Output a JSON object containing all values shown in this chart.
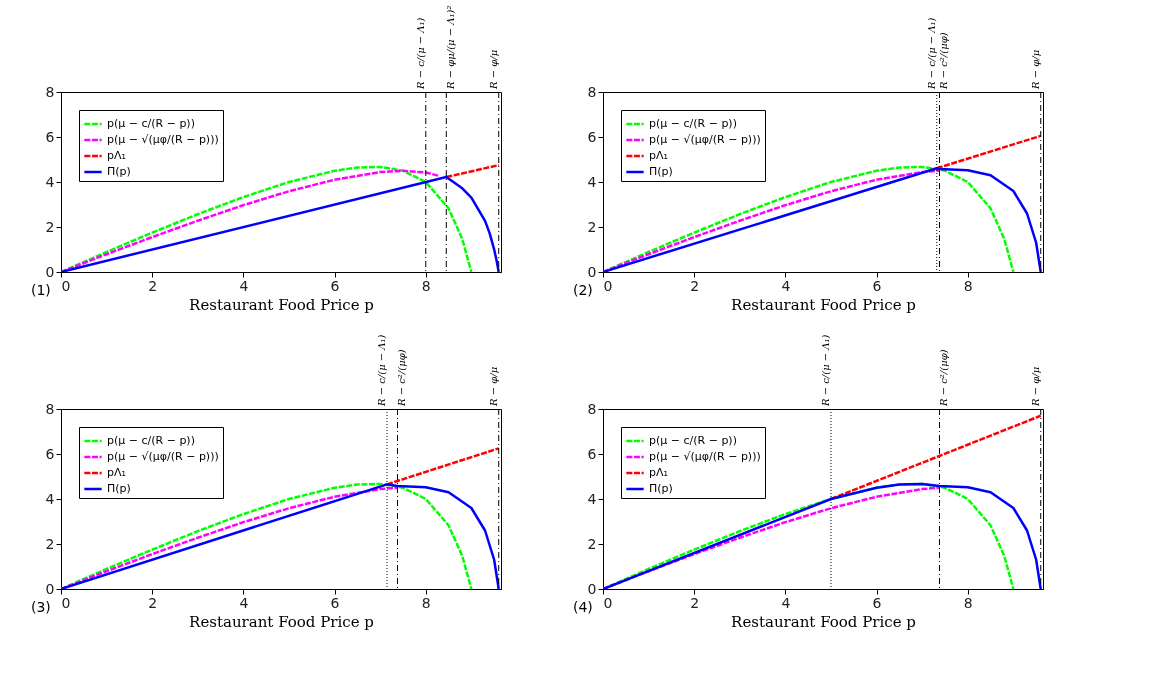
{
  "chart_data": [
    {
      "type": "line",
      "xlabel": "Restaurant Food Price p",
      "xlim": [
        0,
        9.65
      ],
      "ylim": [
        0,
        8
      ],
      "xticks": [
        0,
        2,
        4,
        6,
        8
      ],
      "yticks": [
        0,
        2,
        4,
        6,
        8
      ],
      "grid": false,
      "legend": "top left",
      "annotations": [
        "(1)"
      ],
      "series": [
        {
          "name": "p(μ − c/(R − p))",
          "color": "#00ff00",
          "line_style": "dashed",
          "x": [
            0,
            1,
            2,
            3,
            4,
            5,
            6,
            6.5,
            7,
            7.5,
            8,
            8.5,
            8.8,
            9
          ],
          "values": [
            0,
            0.89,
            1.75,
            2.57,
            3.33,
            4,
            4.5,
            4.64,
            4.67,
            4.5,
            4,
            2.83,
            1.47,
            0
          ]
        },
        {
          "name": "p(μ − √(μφ/(R − p)))",
          "color": "#ff00ff",
          "line_style": "dashed",
          "x": [
            0,
            1,
            2,
            3,
            4,
            5,
            6,
            7,
            7.5,
            8,
            8.3
          ],
          "values": [
            0,
            0.79,
            1.55,
            2.28,
            2.97,
            3.59,
            4.1,
            4.44,
            4.5,
            4.42,
            4.27
          ]
        },
        {
          "name": "pΛ₁",
          "color": "#ff0000",
          "line_style": "dashed",
          "x": [
            8.45,
            9.6
          ],
          "values": [
            4.22,
            4.75
          ]
        },
        {
          "name": "Π(p)",
          "color": "#0000ff",
          "line_style": "solid",
          "x": [
            0,
            8.45,
            8.8,
            9,
            9.3,
            9.4,
            9.5,
            9.55,
            9.6
          ],
          "values": [
            0,
            4.22,
            3.72,
            3.31,
            2.27,
            1.73,
            1.0,
            0.54,
            0
          ]
        }
      ],
      "ref_lines": [
        {
          "axis": "x",
          "value": 8,
          "label": "R − c/(μ − Λ₁)",
          "line_style": "dashdot"
        },
        {
          "axis": "x",
          "value": 8.45,
          "label": "R − φμ/(μ − Λ₁)²",
          "line_style": "dashdot"
        },
        {
          "axis": "x",
          "value": 9.6,
          "label": "R − φ/μ",
          "line_style": "dashdot"
        }
      ]
    },
    {
      "type": "line",
      "xlabel": "Restaurant Food Price p",
      "xlim": [
        0,
        9.65
      ],
      "ylim": [
        0,
        8
      ],
      "xticks": [
        0,
        2,
        4,
        6,
        8
      ],
      "yticks": [
        0,
        2,
        4,
        6,
        8
      ],
      "grid": false,
      "legend": "top left",
      "annotations": [
        "(2)"
      ],
      "series": [
        {
          "name": "p(μ − c/(R − p))",
          "color": "#00ff00",
          "line_style": "dashed",
          "x": [
            0,
            1,
            2,
            3,
            4,
            5,
            6,
            6.5,
            7,
            7.5,
            8,
            8.5,
            8.8,
            9
          ],
          "values": [
            0,
            0.89,
            1.75,
            2.57,
            3.33,
            4,
            4.5,
            4.64,
            4.67,
            4.5,
            4,
            2.83,
            1.47,
            0
          ]
        },
        {
          "name": "p(μ − √(μφ/(R − p)))",
          "color": "#ff00ff",
          "line_style": "dashed",
          "x": [
            0,
            1,
            2,
            3,
            4,
            5,
            6,
            7,
            7.38
          ],
          "values": [
            0,
            0.79,
            1.55,
            2.28,
            2.97,
            3.59,
            4.1,
            4.44,
            4.5
          ]
        },
        {
          "name": "pΛ₁",
          "color": "#ff0000",
          "line_style": "dashed",
          "x": [
            7.32,
            9.6
          ],
          "values": [
            4.61,
            6.05
          ]
        },
        {
          "name": "Π(p)",
          "color": "#0000ff",
          "line_style": "solid",
          "x": [
            0,
            7.32,
            7.38,
            8,
            8.5,
            9,
            9.3,
            9.5,
            9.6
          ],
          "values": [
            0,
            4.61,
            4.58,
            4.52,
            4.3,
            3.6,
            2.6,
            1.3,
            0
          ]
        }
      ],
      "ref_lines": [
        {
          "axis": "x",
          "value": 7.32,
          "label": "R − c/(μ − Λ₁)",
          "line_style": "dotted"
        },
        {
          "axis": "x",
          "value": 7.38,
          "label": "R − c²/(μφ)",
          "line_style": "dashdot"
        },
        {
          "axis": "x",
          "value": 9.6,
          "label": "R − φ/μ",
          "line_style": "dashdot"
        }
      ]
    },
    {
      "type": "line",
      "xlabel": "Restaurant Food Price p",
      "xlim": [
        0,
        9.65
      ],
      "ylim": [
        0,
        8
      ],
      "xticks": [
        0,
        2,
        4,
        6,
        8
      ],
      "yticks": [
        0,
        2,
        4,
        6,
        8
      ],
      "grid": false,
      "legend": "top left",
      "annotations": [
        "(3)"
      ],
      "series": [
        {
          "name": "p(μ − c/(R − p))",
          "color": "#00ff00",
          "line_style": "dashed",
          "x": [
            0,
            1,
            2,
            3,
            4,
            5,
            6,
            6.5,
            7,
            7.5,
            8,
            8.5,
            8.8,
            9
          ],
          "values": [
            0,
            0.89,
            1.75,
            2.57,
            3.33,
            4,
            4.5,
            4.64,
            4.67,
            4.5,
            4,
            2.83,
            1.47,
            0
          ]
        },
        {
          "name": "p(μ − √(μφ/(R − p)))",
          "color": "#ff00ff",
          "line_style": "dashed",
          "x": [
            0,
            1,
            2,
            3,
            4,
            5,
            6,
            7,
            7.38
          ],
          "values": [
            0,
            0.79,
            1.55,
            2.28,
            2.97,
            3.59,
            4.1,
            4.44,
            4.5
          ]
        },
        {
          "name": "pΛ₁",
          "color": "#ff0000",
          "line_style": "dashed",
          "x": [
            7.15,
            9.6
          ],
          "values": [
            4.65,
            6.25
          ]
        },
        {
          "name": "Π(p)",
          "color": "#0000ff",
          "line_style": "solid",
          "x": [
            0,
            7.15,
            7.38,
            8,
            8.5,
            9,
            9.3,
            9.5,
            9.6
          ],
          "values": [
            0,
            4.65,
            4.58,
            4.52,
            4.3,
            3.6,
            2.6,
            1.3,
            0
          ]
        }
      ],
      "ref_lines": [
        {
          "axis": "x",
          "value": 7.15,
          "label": "R − c/(μ − Λ₁)",
          "line_style": "dotted"
        },
        {
          "axis": "x",
          "value": 7.38,
          "label": "R − c²/(μφ)",
          "line_style": "dashdot"
        },
        {
          "axis": "x",
          "value": 9.6,
          "label": "R − φ/μ",
          "line_style": "dashdot"
        }
      ]
    },
    {
      "type": "line",
      "xlabel": "Restaurant Food Price p",
      "xlim": [
        0,
        9.65
      ],
      "ylim": [
        0,
        8
      ],
      "xticks": [
        0,
        2,
        4,
        6,
        8
      ],
      "yticks": [
        0,
        2,
        4,
        6,
        8
      ],
      "grid": false,
      "legend": "top left",
      "annotations": [
        "(4)"
      ],
      "series": [
        {
          "name": "p(μ − c/(R − p))",
          "color": "#00ff00",
          "line_style": "dashed",
          "x": [
            0,
            1,
            2,
            3,
            4,
            5,
            6,
            6.5,
            7,
            7.5,
            8,
            8.5,
            8.8,
            9
          ],
          "values": [
            0,
            0.89,
            1.75,
            2.57,
            3.33,
            4,
            4.5,
            4.64,
            4.67,
            4.5,
            4,
            2.83,
            1.47,
            0
          ]
        },
        {
          "name": "p(μ − √(μφ/(R − p)))",
          "color": "#ff00ff",
          "line_style": "dashed",
          "x": [
            0,
            1,
            2,
            3,
            4,
            5,
            6,
            7,
            7.38
          ],
          "values": [
            0,
            0.79,
            1.55,
            2.28,
            2.97,
            3.59,
            4.1,
            4.44,
            4.5
          ]
        },
        {
          "name": "pΛ₁",
          "color": "#ff0000",
          "line_style": "dashed",
          "x": [
            5,
            9.6
          ],
          "values": [
            4,
            7.7
          ]
        },
        {
          "name": "Π(p)",
          "color": "#0000ff",
          "line_style": "solid",
          "x": [
            0,
            5,
            6,
            6.5,
            7,
            7.38,
            8,
            8.5,
            9,
            9.3,
            9.5,
            9.6
          ],
          "values": [
            0,
            4,
            4.5,
            4.64,
            4.67,
            4.58,
            4.52,
            4.3,
            3.6,
            2.6,
            1.3,
            0
          ]
        }
      ],
      "ref_lines": [
        {
          "axis": "x",
          "value": 5,
          "label": "R − c/(μ − Λ₁)",
          "line_style": "dotted"
        },
        {
          "axis": "x",
          "value": 7.38,
          "label": "R − c²/(μφ)",
          "line_style": "dashdot"
        },
        {
          "axis": "x",
          "value": 9.6,
          "label": "R − φ/μ",
          "line_style": "dashdot"
        }
      ]
    }
  ]
}
